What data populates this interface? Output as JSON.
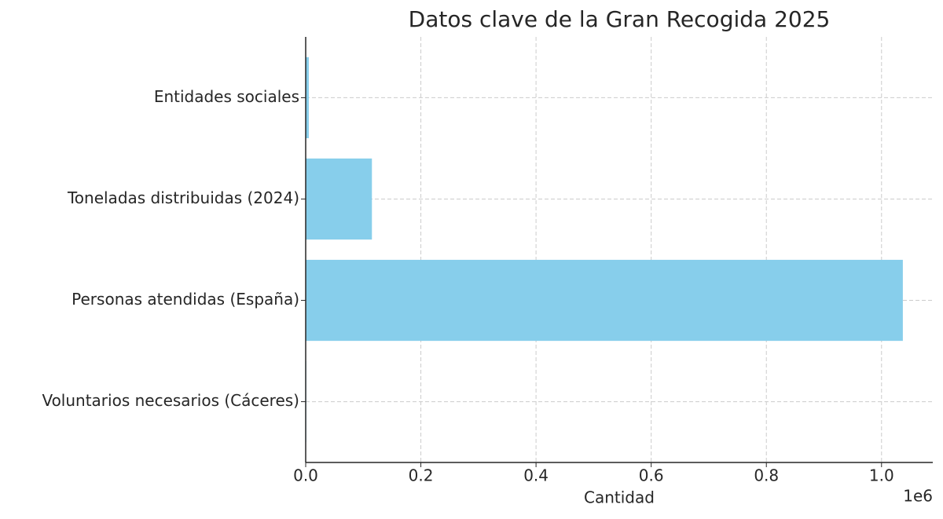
{
  "chart_data": {
    "type": "barh",
    "title": "Datos clave de la Gran Recogida 2025",
    "categories": [
      "Voluntarios necesarios (Cáceres)",
      "Personas atendidas (España)",
      "Toneladas distribuidas (2024)",
      "Entidades sociales"
    ],
    "values": [
      1000,
      1037000,
      115000,
      5400
    ],
    "color": "#87ceeb",
    "xlabel": "Cantidad",
    "x_offset_label": "1e6",
    "xlim": [
      0,
      1089000
    ],
    "xticks": [
      {
        "value": 0,
        "label": "0.0"
      },
      {
        "value": 200000,
        "label": "0.2"
      },
      {
        "value": 400000,
        "label": "0.4"
      },
      {
        "value": 600000,
        "label": "0.6"
      },
      {
        "value": 800000,
        "label": "0.8"
      },
      {
        "value": 1000000,
        "label": "1.0"
      }
    ],
    "grid": true
  }
}
